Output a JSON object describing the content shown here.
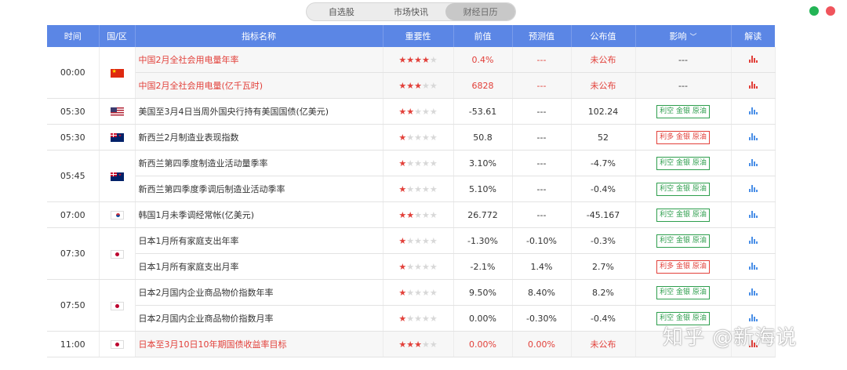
{
  "tabs": [
    {
      "label": "自选股",
      "active": false
    },
    {
      "label": "市场快讯",
      "active": false
    },
    {
      "label": "财经日历",
      "active": true
    }
  ],
  "columns": {
    "time": "时间",
    "region": "国/区",
    "name": "指标名称",
    "importance": "重要性",
    "previous": "前值",
    "forecast": "预测值",
    "actual": "公布值",
    "impact": "影响",
    "analysis": "解读"
  },
  "rows": [
    {
      "time": "00:00",
      "flag": "cn-flag-icon",
      "name": "中国2月全社会用电量年率",
      "stars": 4,
      "previous": "0.4%",
      "forecast": "---",
      "actual": "未公布",
      "impact": "---",
      "highlight": true
    },
    {
      "time": "",
      "flag": "",
      "name": "中国2月全社会用电量(亿千瓦时)",
      "stars": 3,
      "previous": "6828",
      "forecast": "---",
      "actual": "未公布",
      "impact": "---",
      "highlight": true
    },
    {
      "time": "05:30",
      "flag": "us-flag-icon",
      "name": "美国至3月4日当周外国央行持有美国国债(亿美元)",
      "stars": 2,
      "previous": "-53.61",
      "forecast": "---",
      "actual": "102.24",
      "impact": "利空 金银 原油",
      "impact_type": "green"
    },
    {
      "time": "05:30",
      "flag": "nz-flag-icon",
      "name": "新西兰2月制造业表现指数",
      "stars": 1,
      "previous": "50.8",
      "forecast": "---",
      "actual": "52",
      "impact": "利多 金银 原油",
      "impact_type": "red"
    },
    {
      "time": "05:45",
      "flag": "nz-flag-icon",
      "name": "新西兰第四季度制造业活动量季率",
      "stars": 1,
      "previous": "3.10%",
      "forecast": "---",
      "actual": "-4.7%",
      "impact": "利空 金银 原油",
      "impact_type": "green"
    },
    {
      "time": "",
      "flag": "",
      "name": "新西兰第四季度季调后制造业活动季率",
      "stars": 1,
      "previous": "5.10%",
      "forecast": "---",
      "actual": "-0.4%",
      "impact": "利空 金银 原油",
      "impact_type": "green"
    },
    {
      "time": "07:00",
      "flag": "kr-flag-icon",
      "name": "韩国1月未季调经常帐(亿美元)",
      "stars": 2,
      "previous": "26.772",
      "forecast": "---",
      "actual": "-45.167",
      "impact": "利空 金银 原油",
      "impact_type": "green"
    },
    {
      "time": "07:30",
      "flag": "jp-flag-icon",
      "name": "日本1月所有家庭支出年率",
      "stars": 1,
      "previous": "-1.30%",
      "forecast": "-0.10%",
      "actual": "-0.3%",
      "impact": "利空 金银 原油",
      "impact_type": "green"
    },
    {
      "time": "",
      "flag": "",
      "name": "日本1月所有家庭支出月率",
      "stars": 1,
      "previous": "-2.1%",
      "forecast": "1.4%",
      "actual": "2.7%",
      "impact": "利多 金银 原油",
      "impact_type": "red"
    },
    {
      "time": "07:50",
      "flag": "jp-flag-icon",
      "name": "日本2月国内企业商品物价指数年率",
      "stars": 1,
      "previous": "9.50%",
      "forecast": "8.40%",
      "actual": "8.2%",
      "impact": "利空 金银 原油",
      "impact_type": "green"
    },
    {
      "time": "",
      "flag": "",
      "name": "日本2月国内企业商品物价指数月率",
      "stars": 1,
      "previous": "0.00%",
      "forecast": "-0.30%",
      "actual": "-0.4%",
      "impact": "利空 金银 原油",
      "impact_type": "green"
    },
    {
      "time": "11:00",
      "flag": "jp-flag-icon",
      "name": "日本至3月10日10年期国债收益率目标",
      "stars": 3,
      "previous": "0.00%",
      "forecast": "0.00%",
      "actual": "未公布",
      "impact": "",
      "highlight": true
    }
  ],
  "watermark": "知乎 @新海说",
  "colors": {
    "header": "#5b86e5",
    "red": "#e2403a",
    "green": "#2e9e4d"
  }
}
